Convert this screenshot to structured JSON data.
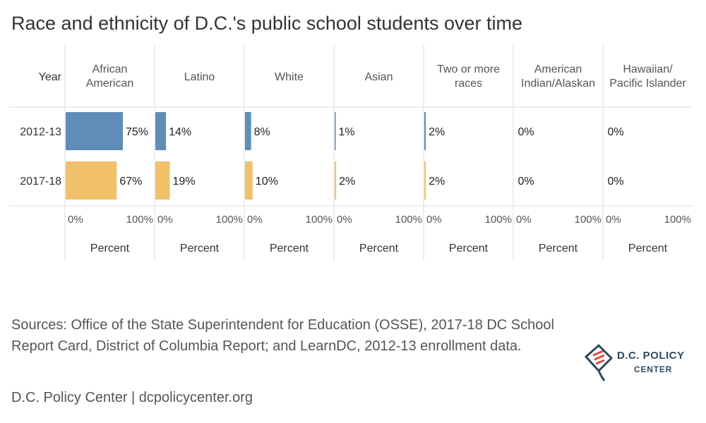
{
  "title": "Race and ethnicity of D.C.'s public school students over time",
  "chart_data": {
    "type": "bar",
    "row_header": "Year",
    "rows": [
      "2012-13",
      "2017-18"
    ],
    "colors": [
      "#5f8db8",
      "#f1c16a"
    ],
    "xlim": [
      0,
      100
    ],
    "x_tick_labels": [
      "0%",
      "100%"
    ],
    "x_axis_label": "Percent",
    "groups": [
      {
        "name": "African American",
        "lines": [
          "African",
          "American"
        ],
        "values": [
          75,
          67
        ],
        "labels": [
          "75%",
          "67%"
        ]
      },
      {
        "name": "Latino",
        "lines": [
          "Latino"
        ],
        "values": [
          14,
          19
        ],
        "labels": [
          "14%",
          "19%"
        ]
      },
      {
        "name": "White",
        "lines": [
          "White"
        ],
        "values": [
          8,
          10
        ],
        "labels": [
          "8%",
          "10%"
        ]
      },
      {
        "name": "Asian",
        "lines": [
          "Asian"
        ],
        "values": [
          1,
          2
        ],
        "labels": [
          "1%",
          "2%"
        ]
      },
      {
        "name": "Two or more races",
        "lines": [
          "Two or more",
          "races"
        ],
        "values": [
          2,
          2
        ],
        "labels": [
          "2%",
          "2%"
        ]
      },
      {
        "name": "American Indian/Alaskan",
        "lines": [
          "American",
          "Indian/Alaskan"
        ],
        "values": [
          0,
          0
        ],
        "labels": [
          "0%",
          "0%"
        ]
      },
      {
        "name": "Hawaiian/ Pacific Islander",
        "lines": [
          "Hawaiian/",
          "Pacific Islander"
        ],
        "values": [
          0,
          0
        ],
        "labels": [
          "0%",
          "0%"
        ]
      }
    ]
  },
  "sources": "Sources: Office of the State Superintendent for Education (OSSE), 2017-18 DC School Report Card, District of Columbia Report; and LearnDC, 2012-13 enrollment data.",
  "footer": "D.C. Policy Center | dcpolicycenter.org",
  "logo": {
    "line1": "D.C. POLICY",
    "line2": "CENTER"
  }
}
